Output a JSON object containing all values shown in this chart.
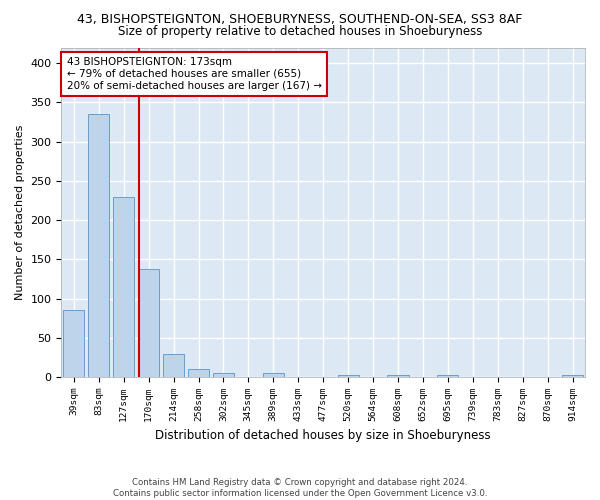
{
  "title": "43, BISHOPSTEIGNTON, SHOEBURYNESS, SOUTHEND-ON-SEA, SS3 8AF",
  "subtitle": "Size of property relative to detached houses in Shoeburyness",
  "xlabel": "Distribution of detached houses by size in Shoeburyness",
  "ylabel": "Number of detached properties",
  "footnote": "Contains HM Land Registry data © Crown copyright and database right 2024.\nContains public sector information licensed under the Open Government Licence v3.0.",
  "bar_labels": [
    "39sqm",
    "83sqm",
    "127sqm",
    "170sqm",
    "214sqm",
    "258sqm",
    "302sqm",
    "345sqm",
    "389sqm",
    "433sqm",
    "477sqm",
    "520sqm",
    "564sqm",
    "608sqm",
    "652sqm",
    "695sqm",
    "739sqm",
    "783sqm",
    "827sqm",
    "870sqm",
    "914sqm"
  ],
  "bar_values": [
    85,
    335,
    230,
    137,
    29,
    10,
    5,
    0,
    5,
    0,
    0,
    3,
    0,
    3,
    0,
    3,
    0,
    0,
    0,
    0,
    3
  ],
  "bar_color": "#bdd4ea",
  "bar_edge_color": "#6a9ec9",
  "background_color": "#dce9f5",
  "grid_color": "#ffffff",
  "property_label": "43 BISHOPSTEIGNTON: 173sqm",
  "annotation_line1": "← 79% of detached houses are smaller (655)",
  "annotation_line2": "20% of semi-detached houses are larger (167) →",
  "annotation_box_color": "#ffffff",
  "annotation_border_color": "#cc0000",
  "vline_color": "#cc0000",
  "title_fontsize": 9,
  "subtitle_fontsize": 8.5,
  "ylim": [
    0,
    420
  ],
  "yticks": [
    0,
    50,
    100,
    150,
    200,
    250,
    300,
    350,
    400
  ],
  "vline_x_index": 2.6
}
